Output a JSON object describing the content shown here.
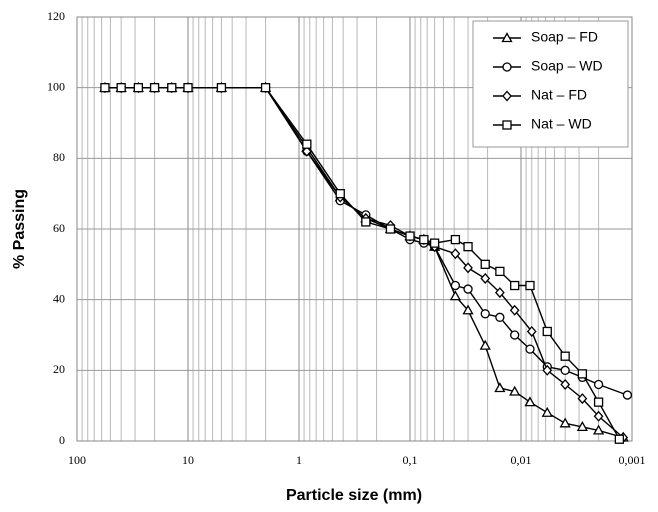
{
  "chart_data": {
    "type": "line",
    "xlabel": "Particle size (mm)",
    "ylabel": "% Passing",
    "xscale": "log",
    "xlim": [
      100,
      0.001
    ],
    "ylim": [
      0,
      120
    ],
    "xticks": [
      100,
      10,
      1,
      {
        "value": 0.1,
        "label": "0,1"
      },
      {
        "value": 0.01,
        "label": "0,01"
      },
      {
        "value": 0.001,
        "label": "0,001"
      }
    ],
    "yticks": [
      0,
      20,
      40,
      60,
      80,
      100,
      120
    ],
    "grid": true,
    "minor_grid": true,
    "legend": "upper right",
    "series": [
      {
        "name": "Soap – FD",
        "color": "#000000",
        "marker": "triangle",
        "x": [
          56,
          40,
          28,
          20,
          14,
          10,
          5,
          2,
          0.85,
          0.425,
          0.25,
          0.15,
          0.1,
          0.075,
          0.06,
          0.039,
          0.03,
          0.021,
          0.0155,
          0.0114,
          0.0083,
          0.0058,
          0.004,
          0.0028,
          0.002,
          0.0012
        ],
        "values": [
          100,
          100,
          100,
          100,
          100,
          100,
          100,
          100,
          83,
          69,
          63,
          60,
          58,
          57,
          55,
          41,
          37,
          27,
          15,
          14,
          11,
          8,
          5,
          4,
          3,
          1
        ]
      },
      {
        "name": "Soap – WD",
        "color": "#000000",
        "marker": "circle",
        "x": [
          56,
          40,
          28,
          20,
          14,
          10,
          5,
          2,
          0.85,
          0.425,
          0.25,
          0.15,
          0.1,
          0.075,
          0.06,
          0.039,
          0.03,
          0.021,
          0.0155,
          0.0114,
          0.0083,
          0.0058,
          0.004,
          0.0028,
          0.002,
          0.0011
        ],
        "values": [
          100,
          100,
          100,
          100,
          100,
          100,
          100,
          100,
          82,
          68,
          64,
          60,
          57,
          56,
          55,
          44,
          43,
          36,
          35,
          30,
          26,
          21,
          20,
          18,
          16,
          13
        ]
      },
      {
        "name": "Nat – FD",
        "color": "#000000",
        "marker": "diamond",
        "x": [
          56,
          40,
          28,
          20,
          14,
          10,
          5,
          2,
          0.85,
          0.425,
          0.25,
          0.15,
          0.1,
          0.075,
          0.06,
          0.039,
          0.03,
          0.021,
          0.0155,
          0.0114,
          0.008,
          0.0058,
          0.004,
          0.0028,
          0.002,
          0.0012
        ],
        "values": [
          100,
          100,
          100,
          100,
          100,
          100,
          100,
          100,
          82,
          69,
          63,
          61,
          58,
          57,
          55,
          53,
          49,
          46,
          42,
          37,
          31,
          20,
          16,
          12,
          7,
          1
        ]
      },
      {
        "name": "Nat – WD",
        "color": "#000000",
        "marker": "square",
        "x": [
          56,
          40,
          28,
          20,
          14,
          10,
          5,
          2,
          0.85,
          0.425,
          0.25,
          0.15,
          0.1,
          0.075,
          0.06,
          0.039,
          0.03,
          0.021,
          0.0155,
          0.0114,
          0.0083,
          0.0058,
          0.004,
          0.0028,
          0.002,
          0.0013
        ],
        "values": [
          100,
          100,
          100,
          100,
          100,
          100,
          100,
          100,
          84,
          70,
          62,
          60,
          58,
          57,
          56,
          57,
          55,
          50,
          48,
          44,
          44,
          31,
          24,
          19,
          11,
          0.5
        ]
      }
    ]
  }
}
